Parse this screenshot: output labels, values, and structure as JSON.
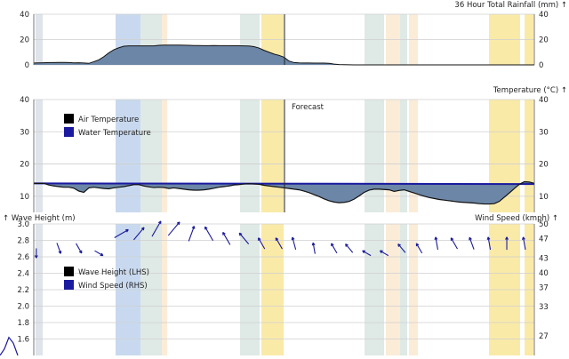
{
  "colors": {
    "area_fill": "#6b86a6",
    "area_line": "#111111",
    "water_fill": "#1a1aa0",
    "wind_arrow": "#1a1a9a",
    "band_blue": "#c8d9ef",
    "band_yellow": "#faeaa8",
    "band_green": "#dfe9e6",
    "band_peach": "#fbecd8",
    "band_grey": "#dfe3ea",
    "grid": "#cfcfcf"
  },
  "forecast_label": "Forecast",
  "chart_data": [
    {
      "type": "area",
      "title": "36 Hour Total Rainfall (mm) ↑",
      "ylim": [
        0,
        40
      ],
      "yticks": [
        0,
        20,
        40
      ],
      "grid": true,
      "x": [
        0,
        1,
        2,
        3,
        4,
        5,
        6,
        7,
        8,
        9,
        10,
        11,
        12,
        13,
        14,
        15,
        16,
        17,
        18,
        19,
        20,
        21,
        22,
        23,
        24,
        25,
        26,
        27,
        28,
        29,
        30,
        31,
        32,
        33,
        34,
        35,
        36,
        37,
        38,
        39,
        40,
        41,
        42,
        43,
        44,
        45,
        46,
        47,
        48,
        49,
        50,
        51,
        52,
        53,
        54,
        55,
        56,
        57,
        58,
        59,
        60,
        61,
        62,
        63,
        64,
        65,
        66,
        67,
        68,
        69,
        70,
        71,
        72,
        73,
        74,
        75,
        76,
        77,
        78,
        79,
        80,
        81,
        82,
        83,
        84,
        85,
        86,
        87,
        88,
        89,
        90,
        91,
        92,
        93,
        94,
        95,
        96,
        97,
        98,
        99,
        100
      ],
      "values": [
        1.5,
        1.6,
        1.7,
        1.8,
        1.8,
        1.9,
        1.9,
        1.8,
        1.6,
        1.7,
        1.5,
        1.2,
        2.5,
        4,
        6.5,
        9.5,
        12,
        13.5,
        14.7,
        15,
        15,
        15,
        15,
        15,
        15,
        15.4,
        15.6,
        15.6,
        15.6,
        15.6,
        15.5,
        15.4,
        15.3,
        15.3,
        15.2,
        15.2,
        15.3,
        15.2,
        15.2,
        15.2,
        15.1,
        15.1,
        15,
        14.9,
        14.4,
        13.3,
        11.5,
        10,
        8.5,
        7.5,
        6,
        3,
        1.8,
        1.6,
        1.5,
        1.5,
        1.4,
        1.4,
        1.4,
        1.2,
        0.6,
        0.3,
        0.2,
        0.1,
        0,
        0,
        0,
        0,
        0,
        0,
        0,
        0,
        0,
        0,
        0,
        0,
        0,
        0,
        0,
        0,
        0,
        0,
        0,
        0,
        0,
        0,
        0,
        0,
        0,
        0,
        0,
        0,
        0,
        0,
        0,
        0,
        0,
        0,
        0,
        0,
        0
      ]
    },
    {
      "type": "area",
      "title": "Temperature (°C) ↑",
      "ylim": [
        5,
        40
      ],
      "yticks": [
        10,
        20,
        30,
        40
      ],
      "grid": true,
      "legend": [
        "Air Temperature",
        "Water Temperature"
      ],
      "legend_position": "top-left",
      "series": [
        {
          "name": "Air Temperature",
          "x": [
            0,
            1,
            2,
            3,
            4,
            5,
            6,
            7,
            8,
            9,
            10,
            11,
            12,
            13,
            14,
            15,
            16,
            17,
            18,
            19,
            20,
            21,
            22,
            23,
            24,
            25,
            26,
            27,
            28,
            29,
            30,
            31,
            32,
            33,
            34,
            35,
            36,
            37,
            38,
            39,
            40,
            41,
            42,
            43,
            44,
            45,
            46,
            47,
            48,
            49,
            50,
            51,
            52,
            53,
            54,
            55,
            56,
            57,
            58,
            59,
            60,
            61,
            62,
            63,
            64,
            65,
            66,
            67,
            68,
            69,
            70,
            71,
            72,
            73,
            74,
            75,
            76,
            77,
            78,
            79,
            80,
            81,
            82,
            83,
            84,
            85,
            86,
            87,
            88,
            89,
            90,
            91,
            92,
            93,
            94,
            95,
            96,
            97,
            98,
            99,
            100
          ],
          "values": [
            14,
            14,
            14,
            13.5,
            13.2,
            13,
            12.8,
            12.8,
            12.5,
            11.6,
            11.2,
            12.6,
            12.8,
            12.6,
            12.4,
            12.3,
            12.6,
            12.8,
            13,
            13.3,
            13.6,
            13.6,
            13.2,
            12.9,
            12.7,
            12.8,
            12.7,
            12.4,
            12.6,
            12.4,
            12.2,
            12,
            11.9,
            11.9,
            12,
            12.2,
            12.5,
            12.8,
            13,
            13.2,
            13.5,
            13.6,
            13.8,
            13.9,
            13.8,
            13.7,
            13.4,
            13.2,
            13,
            12.8,
            12.6,
            12.4,
            12.2,
            12,
            11.6,
            11.1,
            10.5,
            9.9,
            9.2,
            8.6,
            8.2,
            8,
            8.1,
            8.4,
            9.1,
            10.1,
            11.2,
            11.9,
            12.2,
            12.2,
            12.1,
            12,
            11.5,
            11.8,
            12,
            11.5,
            11,
            10.5,
            10,
            9.6,
            9.3,
            9,
            8.8,
            8.6,
            8.4,
            8.2,
            8.1,
            8,
            7.9,
            7.7,
            7.6,
            7.6,
            7.7,
            8.4,
            9.7,
            11,
            12.4,
            13.7,
            14.5,
            14.4,
            14
          ]
        },
        {
          "name": "Water Temperature",
          "x": [
            0,
            100
          ],
          "values": [
            14,
            13.8
          ]
        }
      ]
    },
    {
      "type": "line",
      "title": "↑ Wave Height (m)",
      "right_title": "Wind Speed (kmph) ↑",
      "legend": [
        "Wave Height (LHS)",
        "Wind Speed (RHS)"
      ],
      "legend_position": "middle-left",
      "ylim": [
        1.4,
        3.0
      ],
      "yticks": [
        1.6,
        1.8,
        2.0,
        2.2,
        2.4,
        2.6,
        2.8,
        3.0
      ],
      "right_ticks": [
        "27",
        "33",
        "37",
        "40",
        "43",
        "47",
        "50"
      ],
      "grid": true,
      "wave_x": [
        0,
        1,
        2,
        3,
        4
      ],
      "wave_values": [
        1.4,
        1.48,
        1.62,
        1.55,
        1.4
      ],
      "wind_dir_x": [
        0.5,
        5,
        9,
        13,
        17.5,
        21,
        24.5,
        28,
        31.5,
        35,
        38.5,
        42,
        45.5,
        49,
        52,
        56,
        60,
        63,
        66.5,
        70,
        73.5,
        77,
        80.5,
        84,
        87.5,
        91,
        94.5,
        98
      ],
      "wind_dir_angle": [
        180,
        160,
        150,
        120,
        60,
        40,
        30,
        40,
        20,
        330,
        330,
        320,
        330,
        330,
        345,
        350,
        330,
        320,
        300,
        300,
        320,
        330,
        350,
        330,
        340,
        350,
        0,
        350
      ],
      "wind_dir_speed": [
        44,
        45,
        45,
        44,
        48,
        48,
        49,
        49,
        48,
        48,
        47,
        47,
        46,
        46,
        46,
        45,
        45,
        45,
        44,
        44,
        45,
        45,
        46,
        46,
        46,
        46,
        46,
        46
      ]
    }
  ]
}
